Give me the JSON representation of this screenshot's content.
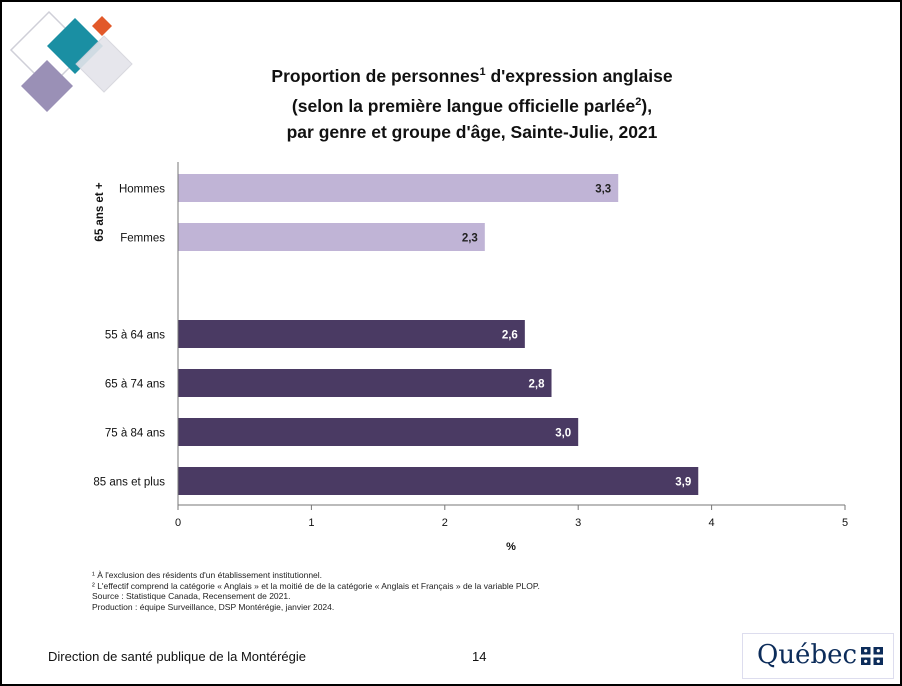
{
  "title": {
    "line1_prefix": "Proportion de personnes",
    "line1_sup": "1",
    "line1_suffix": " d'expression anglaise",
    "line2_prefix": "(selon la première langue officielle parlée",
    "line2_sup": "2",
    "line2_suffix": "),",
    "line3": "par genre et groupe d'âge, Sainte-Julie, 2021"
  },
  "chart_data": {
    "type": "bar",
    "orientation": "horizontal",
    "group_label": "65 ans et +",
    "categories": [
      "Hommes",
      "Femmes",
      "55 à 64 ans",
      "65 à 74 ans",
      "75 à 84 ans",
      "85 ans et plus"
    ],
    "values": [
      3.3,
      2.3,
      2.6,
      2.8,
      3.0,
      3.9
    ],
    "value_labels": [
      "3,3",
      "2,3",
      "2,6",
      "2,8",
      "3,0",
      "3,9"
    ],
    "bar_colors": [
      "#c0b4d6",
      "#c0b4d6",
      "#4a3a63",
      "#4a3a63",
      "#4a3a63",
      "#4a3a63"
    ],
    "label_colors": [
      "#222222",
      "#222222",
      "#ffffff",
      "#ffffff",
      "#ffffff",
      "#ffffff"
    ],
    "xlabel": "%",
    "xlim": [
      0,
      5
    ],
    "xticks": [
      "0",
      "1",
      "2",
      "3",
      "4",
      "5"
    ],
    "grid": false
  },
  "footnotes": [
    "¹ À l'exclusion des résidents d'un établissement institutionnel.",
    "² L'effectif comprend la catégorie « Anglais » et la moitié de de la catégorie « Anglais et Français » de la variable PLOP.",
    "Source : Statistique Canada, Recensement de 2021.",
    "Production : équipe Surveillance, DSP Montérégie, janvier 2024."
  ],
  "footer": {
    "organization": "Direction de santé publique de la Montérégie",
    "page_number": "14",
    "logo_text": "Québec"
  },
  "colors": {
    "accent_teal": "#1a8fa3",
    "accent_orange": "#e2592a",
    "accent_purple": "#9a90b6",
    "quebec_blue": "#0c2c5a"
  }
}
